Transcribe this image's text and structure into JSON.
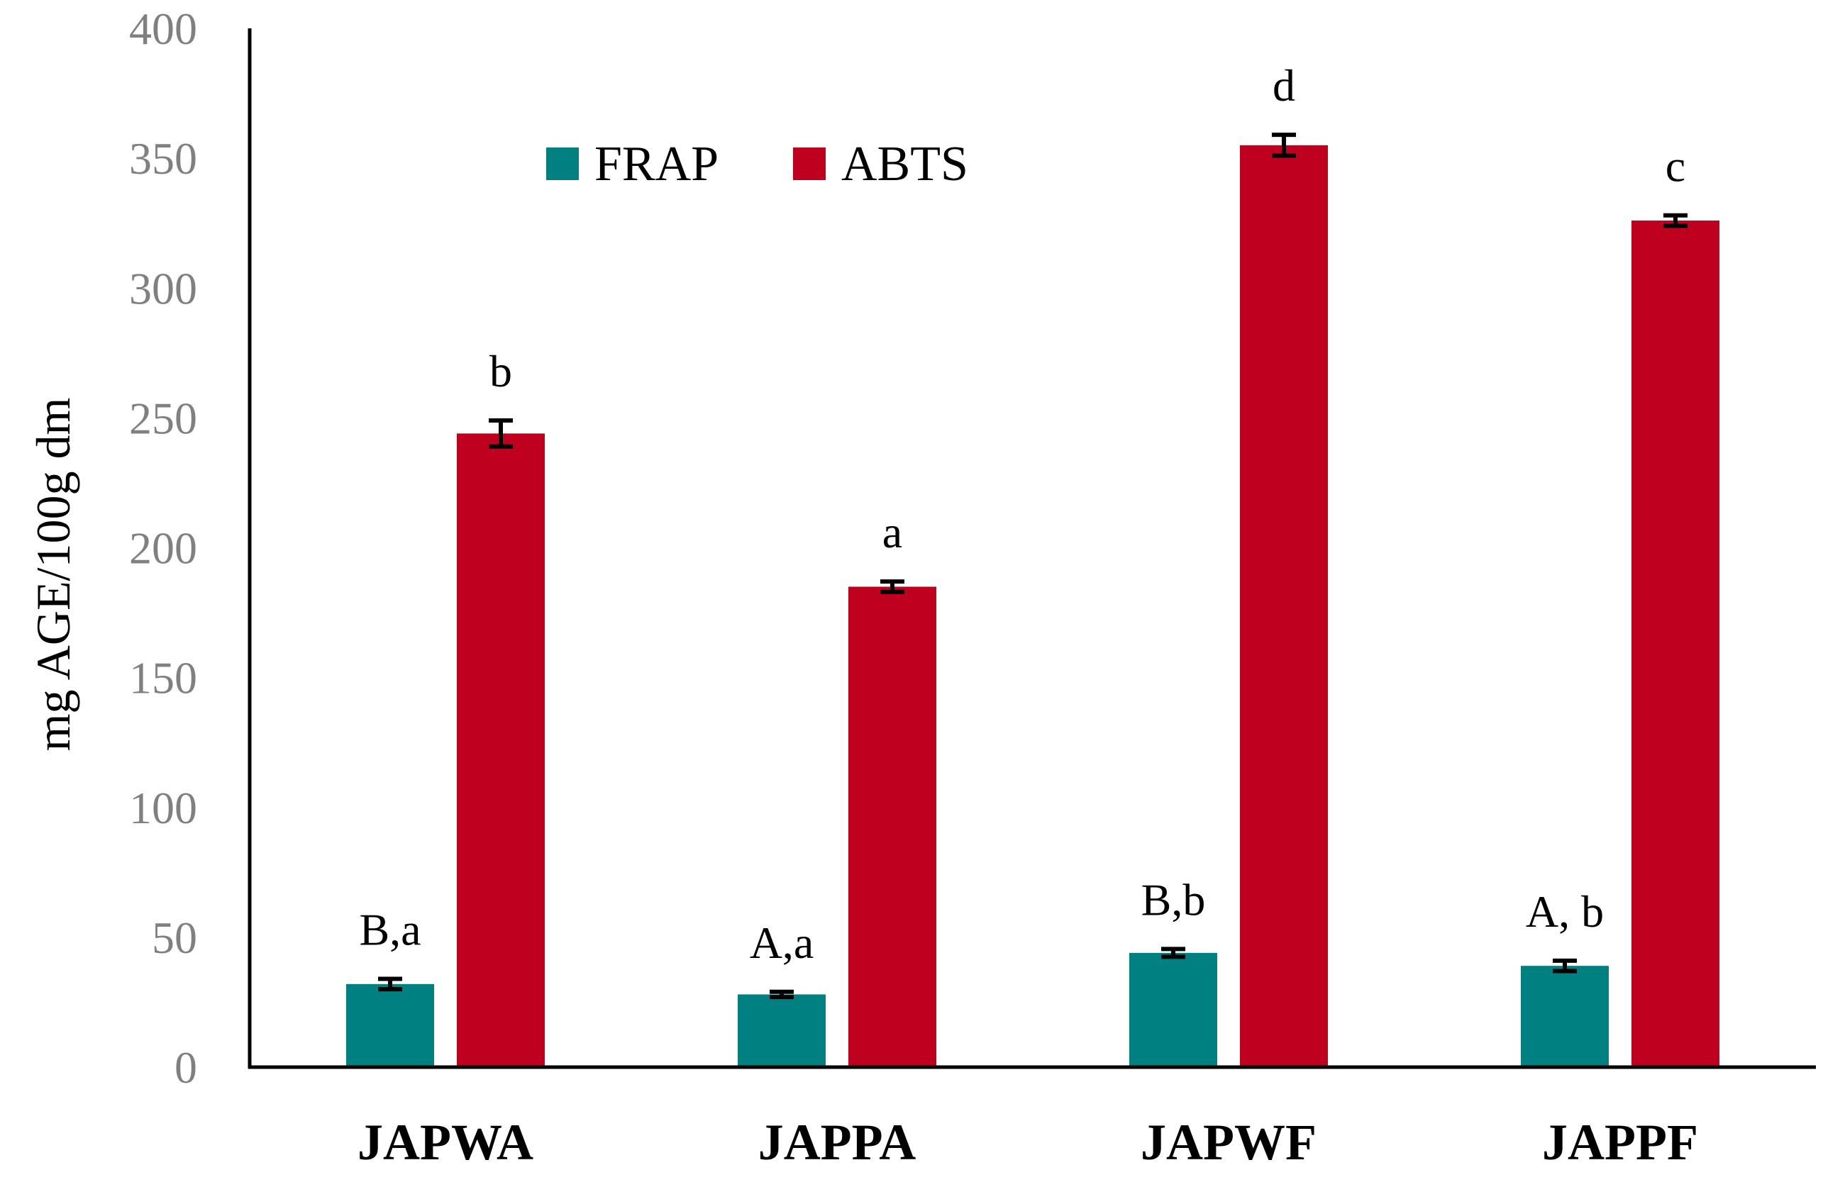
{
  "chart_data": {
    "type": "bar",
    "title": "",
    "xlabel": "",
    "ylabel": "mg AGE/100g dm",
    "ylim": [
      0,
      400
    ],
    "yticks": [
      0,
      50,
      100,
      150,
      200,
      250,
      300,
      350,
      400
    ],
    "categories": [
      "JAPWA",
      "JAPPA",
      "JAPWF",
      "JAPPF"
    ],
    "series": [
      {
        "name": "FRAP",
        "color": "#008080",
        "values": [
          32,
          28,
          44,
          39
        ],
        "errors": [
          2,
          1,
          1.5,
          2
        ],
        "annotations": [
          "B,a",
          "A,a",
          "B,b",
          "A, b"
        ]
      },
      {
        "name": "ABTS",
        "color": "#C0001F",
        "values": [
          244,
          185,
          355,
          326
        ],
        "errors": [
          5,
          2,
          4,
          2
        ],
        "annotations": [
          "b",
          "a",
          "d",
          "c"
        ]
      }
    ],
    "legend_position": "top-center",
    "grid": false
  }
}
